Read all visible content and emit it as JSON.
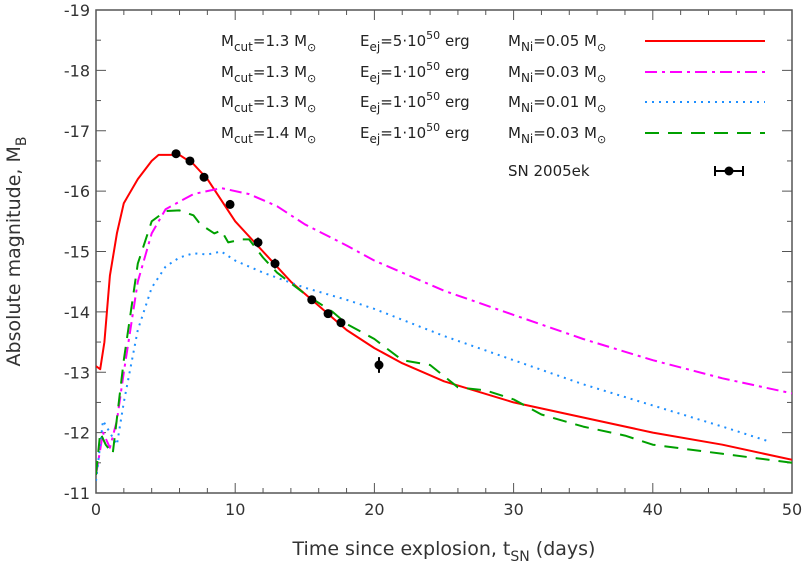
{
  "chart_data": {
    "type": "line",
    "xlabel": {
      "main": "Time since explosion, t",
      "sub": "SN",
      "unit": "  (days)"
    },
    "ylabel": {
      "main": "Absolute magnitude, M",
      "sub": "B"
    },
    "xlim": [
      0,
      50
    ],
    "ylim": [
      -11,
      -19
    ],
    "y_inverted": true,
    "xticks": [
      "0",
      "10",
      "20",
      "30",
      "40",
      "50"
    ],
    "yticks": [
      "-11",
      "-12",
      "-13",
      "-14",
      "-15",
      "-16",
      "-17",
      "-18",
      "-19"
    ],
    "legend_placement": "top-right",
    "series": [
      {
        "legend": {
          "mcut": "1.3",
          "eej": "5",
          "mni": "0.05"
        },
        "color": "#ff0000",
        "style": "solid",
        "x": [
          0,
          0.3,
          0.6,
          1,
          1.5,
          2,
          3,
          4,
          4.5,
          5,
          6,
          7,
          8,
          9,
          10,
          12,
          14,
          16,
          18,
          20,
          22,
          25,
          30,
          35,
          40,
          45,
          50
        ],
        "y": [
          -13.1,
          -13.05,
          -13.5,
          -14.6,
          -15.3,
          -15.8,
          -16.2,
          -16.5,
          -16.6,
          -16.6,
          -16.6,
          -16.45,
          -16.2,
          -15.85,
          -15.5,
          -15.0,
          -14.5,
          -14.1,
          -13.7,
          -13.4,
          -13.15,
          -12.85,
          -12.5,
          -12.25,
          -12.0,
          -11.8,
          -11.55
        ]
      },
      {
        "legend": {
          "mcut": "1.3",
          "eej": "1",
          "mni": "0.03"
        },
        "color": "#ff00ff",
        "style": "dashdot",
        "x": [
          0,
          0.5,
          1,
          1.5,
          2,
          3,
          4,
          5,
          7,
          9,
          11,
          13,
          15,
          18,
          20,
          25,
          30,
          35,
          40,
          45,
          50
        ],
        "y": [
          -11.3,
          -12.0,
          -11.75,
          -12.2,
          -13.0,
          -14.5,
          -15.3,
          -15.7,
          -15.95,
          -16.05,
          -15.95,
          -15.75,
          -15.45,
          -15.1,
          -14.85,
          -14.35,
          -13.95,
          -13.55,
          -13.2,
          -12.9,
          -12.65
        ]
      },
      {
        "legend": {
          "mcut": "1.3",
          "eej": "1",
          "mni": "0.01"
        },
        "color": "#1e8fff",
        "style": "dotted",
        "x": [
          0,
          0.5,
          1,
          1.5,
          2,
          3,
          4,
          5,
          6,
          7,
          8,
          9,
          10,
          12,
          15,
          18,
          20,
          25,
          30,
          35,
          40,
          45,
          48.4
        ],
        "y": [
          -11.2,
          -12.2,
          -12.0,
          -11.8,
          -12.5,
          -13.7,
          -14.4,
          -14.75,
          -14.9,
          -14.97,
          -14.95,
          -15.0,
          -14.85,
          -14.65,
          -14.4,
          -14.2,
          -14.05,
          -13.6,
          -13.2,
          -12.8,
          -12.45,
          -12.1,
          -11.85
        ]
      },
      {
        "legend": {
          "mcut": "1.4",
          "eej": "1",
          "mni": "0.03"
        },
        "color": "#00a000",
        "style": "dashed",
        "x": [
          0,
          0.3,
          0.7,
          1.2,
          2,
          3,
          4,
          5,
          6,
          7,
          7.5,
          8.5,
          9,
          9.5,
          10.5,
          11,
          12,
          13,
          15,
          17,
          18,
          20,
          22,
          24,
          26,
          28,
          30,
          32,
          35,
          38,
          40,
          45,
          50
        ],
        "y": [
          -11.3,
          -12.0,
          -11.8,
          -11.65,
          -13.2,
          -14.8,
          -15.5,
          -15.67,
          -15.68,
          -15.6,
          -15.45,
          -15.3,
          -15.35,
          -15.15,
          -15.2,
          -15.2,
          -14.9,
          -14.65,
          -14.3,
          -14.0,
          -13.8,
          -13.55,
          -13.2,
          -13.12,
          -12.75,
          -12.7,
          -12.55,
          -12.3,
          -12.1,
          -11.95,
          -11.8,
          -11.65,
          -11.5
        ]
      }
    ],
    "observations": {
      "name": "SN 2005ek",
      "color": "#000000",
      "x": [
        5.75,
        6.75,
        7.76,
        9.63,
        11.64,
        12.86,
        15.5,
        16.67,
        17.6,
        20.33
      ],
      "y": [
        -16.62,
        -16.5,
        -16.23,
        -15.78,
        -15.15,
        -14.8,
        -14.2,
        -13.97,
        -13.82,
        -13.12
      ],
      "err": [
        0.03,
        0.03,
        0.03,
        0.07,
        0.08,
        0.08,
        0.04,
        0.04,
        0.04,
        0.13
      ]
    },
    "legend_text": {
      "mcut_label": "M",
      "mcut_sub": "cut",
      "eej_label": "E",
      "eej_sub": "ej",
      "mni_label": "M",
      "mni_sub": "Ni",
      "sun": "M",
      "exp_base": "·10",
      "exp": "50",
      "erg": "erg"
    }
  }
}
